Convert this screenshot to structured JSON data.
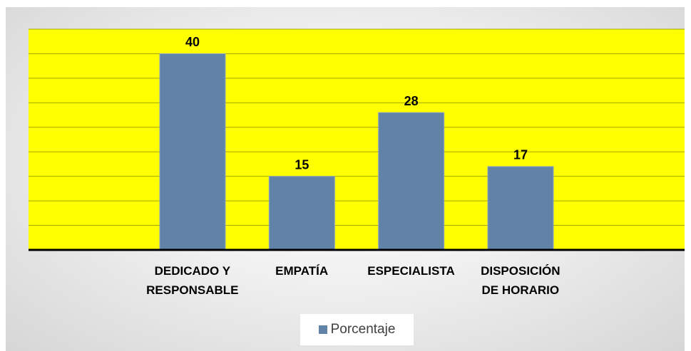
{
  "chart_data": {
    "type": "bar",
    "categories": [
      "DEDICADO Y\nRESPONSABLE",
      "EMPATÍA",
      "ESPECIALISTA",
      "DISPOSICIÓN\nDE HORARIO"
    ],
    "series": [
      {
        "name": "Porcentaje",
        "color": "#6283a8",
        "values": [
          40,
          15,
          28,
          17
        ]
      }
    ],
    "ylim": [
      0,
      45
    ],
    "yticks": [
      0,
      5,
      10,
      15,
      20,
      25,
      30,
      35,
      40,
      45
    ],
    "grid": true,
    "plot_background": "#ffff00",
    "legend": "bottom"
  }
}
